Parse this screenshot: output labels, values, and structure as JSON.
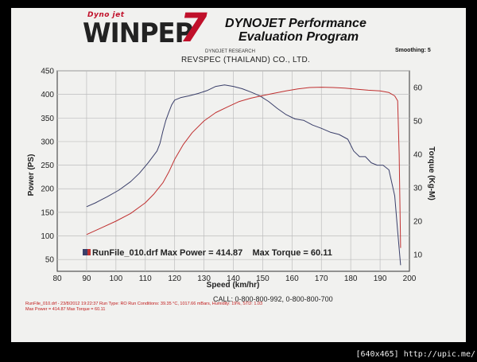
{
  "header": {
    "logo_small": "Dyno jet",
    "logo_main": "WINPEP",
    "logo_version": "7",
    "title_line1": "DYNOJET Performance",
    "title_line2": "Evaluation Program",
    "smoothing": "Smoothing: 5",
    "subtitle_small": "DYNOJET RESEARCH",
    "company": "REVSPEC (THAILAND) CO., LTD."
  },
  "footer": {
    "call": "CALL: 0-800-800-992, 0-800-800-700",
    "meta_line1": "RunFile_010.drf - 23/8/2012 19:22:37  Run Type: RO  Run Conditions: 39.35 °C, 1017.66 mBars,  Humidity: 19%, STD: 1.03",
    "meta_line2": "Max Power = 414.87  Max Torque = 60.11"
  },
  "watermark": "[640x465] http://upic.me/",
  "colors": {
    "power": "#3a3f6a",
    "torque": "#c03030",
    "grid": "#bdbdbd",
    "legend_swatch_power": "#3a3f6a",
    "legend_swatch_torque": "#c03030"
  },
  "chart_data": {
    "type": "line",
    "xlabel": "Speed (km/hr)",
    "ylabel": "Power (PS)",
    "y2label": "Torque (Kg-M)",
    "xlim": [
      80,
      200
    ],
    "ylim": [
      25,
      450
    ],
    "y2lim": [
      5,
      65
    ],
    "x_ticks": [
      80,
      90,
      100,
      110,
      120,
      130,
      140,
      150,
      160,
      170,
      180,
      190,
      200
    ],
    "y_ticks": [
      50,
      100,
      150,
      200,
      250,
      300,
      350,
      400,
      450
    ],
    "y2_ticks": [
      10,
      20,
      30,
      40,
      50,
      60
    ],
    "grid": true,
    "legend": {
      "text": "RunFile_010.drf Max Power = 414.87    Max Torque = 60.11",
      "placement": "bottom-center"
    },
    "series": [
      {
        "axis": "left",
        "x": [
          90,
          93,
          97,
          101,
          105,
          108,
          111,
          114,
          115,
          116,
          117,
          118,
          119,
          120,
          122,
          125,
          128,
          131,
          134,
          137,
          140,
          143,
          146,
          149,
          152,
          155,
          158,
          161,
          164,
          167,
          170,
          173,
          176,
          179,
          181,
          183,
          185,
          187,
          189,
          191,
          193,
          195,
          196,
          197
        ],
        "y": [
          162,
          170,
          183,
          197,
          215,
          233,
          255,
          280,
          296,
          322,
          345,
          362,
          378,
          388,
          393,
          397,
          402,
          408,
          417,
          420,
          417,
          412,
          405,
          397,
          385,
          370,
          357,
          348,
          345,
          335,
          328,
          320,
          315,
          305,
          280,
          268,
          268,
          255,
          250,
          250,
          240,
          185,
          110,
          38
        ]
      },
      {
        "axis": "right",
        "x": [
          90,
          95,
          100,
          105,
          110,
          113,
          116,
          118,
          120,
          123,
          126,
          130,
          134,
          138,
          142,
          146,
          150,
          154,
          158,
          162,
          166,
          170,
          174,
          178,
          182,
          186,
          190,
          193,
          195,
          196,
          196.5,
          197
        ],
        "y": [
          16.0,
          18.0,
          20.0,
          22.3,
          25.5,
          28.2,
          31.5,
          34.7,
          38.5,
          43.0,
          46.5,
          50.0,
          52.5,
          54.2,
          55.8,
          56.8,
          57.6,
          58.3,
          59.0,
          59.6,
          60.0,
          60.1,
          60.0,
          59.8,
          59.5,
          59.2,
          59.0,
          58.5,
          57.5,
          56.0,
          40.0,
          12.0
        ]
      }
    ]
  }
}
